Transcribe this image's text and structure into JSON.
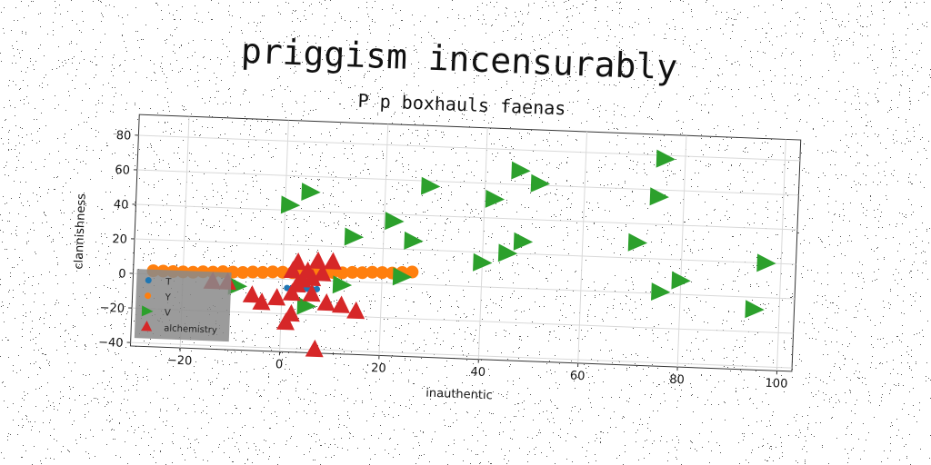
{
  "chart_data": {
    "type": "scatter",
    "title": "priggism incensurably",
    "subtitle": "P p boxhauls faenas",
    "xlabel": "inauthentic",
    "ylabel": "clannishness",
    "xlim": [
      -30,
      103
    ],
    "ylim": [
      -42,
      92
    ],
    "xticks": [
      -20,
      0,
      20,
      40,
      60,
      80,
      100
    ],
    "yticks": [
      -40,
      -20,
      0,
      20,
      40,
      60,
      80
    ],
    "grid": true,
    "legend_position": "lower-left",
    "series": [
      {
        "name": "T",
        "marker": "circle",
        "color": "#1f77b4",
        "points": [
          [
            1,
            -5
          ],
          [
            2,
            -5
          ],
          [
            3,
            -5
          ],
          [
            4,
            -5
          ],
          [
            5,
            -5
          ],
          [
            6,
            -5
          ],
          [
            7,
            -5
          ]
        ]
      },
      {
        "name": "Y",
        "marker": "circle",
        "color": "#ff7f0e",
        "points": [
          [
            -26,
            2
          ],
          [
            -24,
            2
          ],
          [
            -22,
            2
          ],
          [
            -20,
            2
          ],
          [
            -18,
            2
          ],
          [
            -16,
            2.5
          ],
          [
            -14,
            2.5
          ],
          [
            -12,
            3
          ],
          [
            -10,
            3
          ],
          [
            -8,
            3
          ],
          [
            -6,
            3.5
          ],
          [
            -4,
            3.5
          ],
          [
            -2,
            4
          ],
          [
            0,
            4
          ],
          [
            2,
            4
          ],
          [
            4,
            4.5
          ],
          [
            6,
            4.5
          ],
          [
            8,
            5
          ],
          [
            10,
            5
          ],
          [
            12,
            5
          ],
          [
            14,
            5.5
          ],
          [
            16,
            5.5
          ],
          [
            18,
            6
          ],
          [
            20,
            6
          ],
          [
            22,
            6
          ],
          [
            24,
            6.5
          ],
          [
            26,
            7
          ]
        ]
      },
      {
        "name": "V",
        "marker": "triangle-right",
        "color": "#2ca02c",
        "points": [
          [
            76,
            78
          ],
          [
            47,
            68
          ],
          [
            51,
            61
          ],
          [
            75,
            56
          ],
          [
            29,
            57
          ],
          [
            42,
            51
          ],
          [
            5,
            51
          ],
          [
            1,
            43
          ],
          [
            22,
            36
          ],
          [
            14,
            26
          ],
          [
            26,
            25
          ],
          [
            48,
            27
          ],
          [
            45,
            20
          ],
          [
            71,
            29
          ],
          [
            97,
            20
          ],
          [
            40,
            14
          ],
          [
            80,
            8
          ],
          [
            76,
            1
          ],
          [
            24,
            4
          ],
          [
            12,
            -2
          ],
          [
            95,
            -7
          ],
          [
            -9,
            -5
          ],
          [
            5,
            -15
          ]
        ]
      },
      {
        "name": "alchemistry",
        "marker": "triangle-up",
        "color": "#d62728",
        "points": [
          [
            3,
            10
          ],
          [
            7,
            11
          ],
          [
            10,
            11
          ],
          [
            2,
            5
          ],
          [
            5,
            5
          ],
          [
            8,
            4
          ],
          [
            4,
            0
          ],
          [
            6,
            1
          ],
          [
            3,
            -3
          ],
          [
            -14,
            -3
          ],
          [
            -11,
            -3
          ],
          [
            -6,
            -10
          ],
          [
            -4,
            -14
          ],
          [
            -1,
            -11
          ],
          [
            2,
            -8
          ],
          [
            6,
            -8
          ],
          [
            9,
            -13
          ],
          [
            12,
            -14
          ],
          [
            15,
            -17
          ],
          [
            2,
            -20
          ],
          [
            1,
            -25
          ],
          [
            7,
            -40
          ]
        ]
      }
    ]
  }
}
